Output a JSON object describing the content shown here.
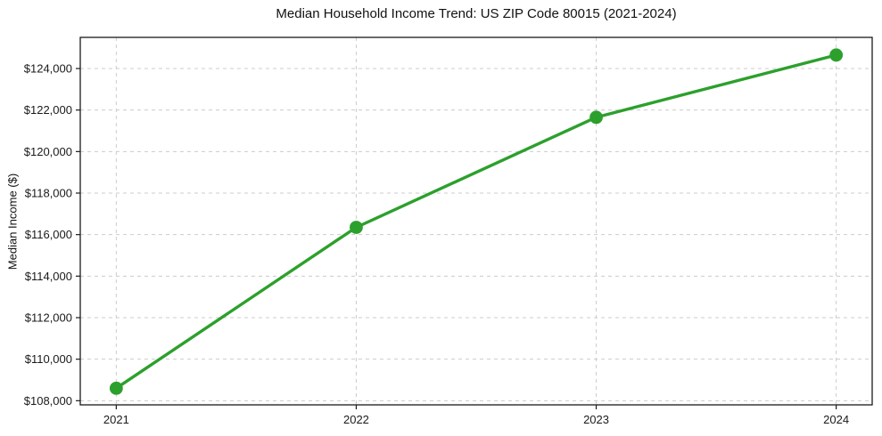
{
  "chart_data": {
    "type": "line",
    "title": "Median Household Income Trend: US ZIP Code 80015 (2021-2024)",
    "xlabel": "",
    "ylabel": "Median Income ($)",
    "x": [
      2021,
      2022,
      2023,
      2024
    ],
    "series": [
      {
        "name": "median-household-income",
        "values": [
          108600,
          116350,
          121650,
          124650
        ],
        "color": "#2ca02c",
        "marker": "circle"
      }
    ],
    "xtick_labels": [
      "2021",
      "2022",
      "2023",
      "2024"
    ],
    "ytick_values": [
      108000,
      110000,
      112000,
      114000,
      116000,
      118000,
      120000,
      122000,
      124000
    ],
    "ytick_labels": [
      "$108,000",
      "$110,000",
      "$112,000",
      "$114,000",
      "$116,000",
      "$118,000",
      "$120,000",
      "$122,000",
      "$124,000"
    ],
    "xlim": [
      2020.85,
      2024.15
    ],
    "ylim": [
      107800,
      125500
    ],
    "grid": "dashed",
    "grid_color": "#cccccc",
    "spine_color": "#1a1a1a",
    "background": "#ffffff",
    "legend": "none"
  }
}
